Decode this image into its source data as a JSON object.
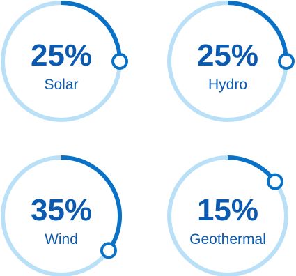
{
  "chart_data": {
    "type": "pie",
    "style": "progress-rings",
    "items": [
      {
        "category": "Solar",
        "value": 25,
        "value_label": "25%"
      },
      {
        "category": "Hydro",
        "value": 25,
        "value_label": "25%"
      },
      {
        "category": "Wind",
        "value": 35,
        "value_label": "35%"
      },
      {
        "category": "Geothermal",
        "value": 15,
        "value_label": "15%"
      }
    ]
  },
  "colors": {
    "track": "#b9e0f7",
    "arc": "#0a72c6",
    "text": "#0b5ab0",
    "marker_fill": "#ffffff"
  }
}
